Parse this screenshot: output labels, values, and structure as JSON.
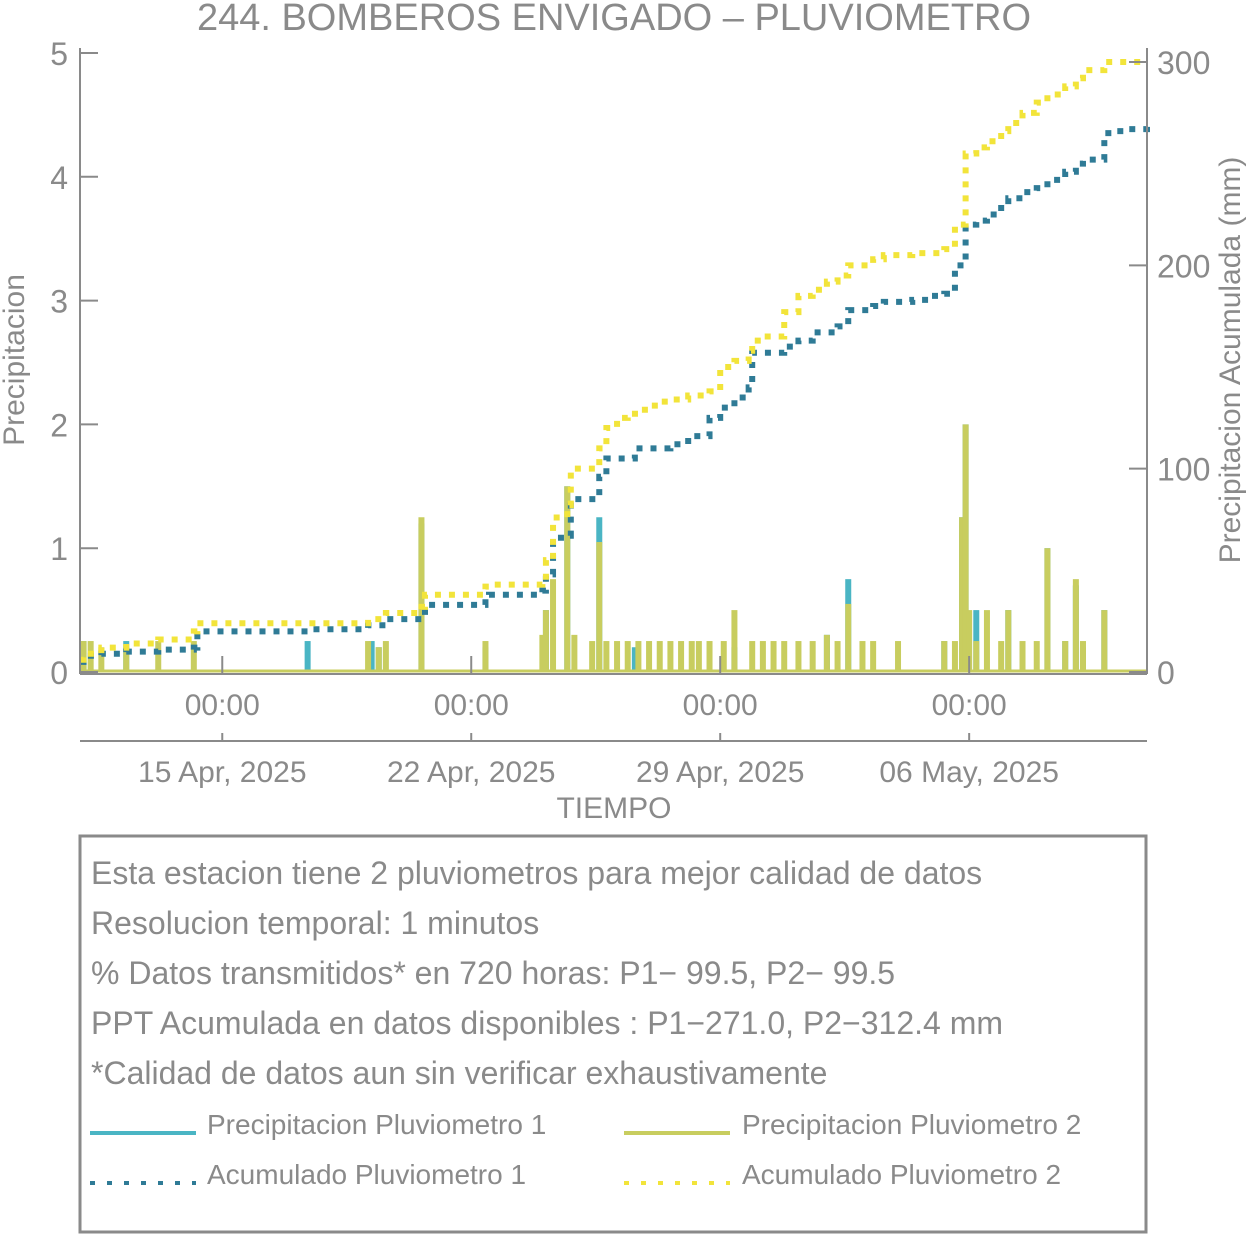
{
  "chart_data": {
    "type": "bar",
    "title": "244. BOMBEROS ENVIGADO – PLUVIOMETRO",
    "xlabel": "TIEMPO",
    "ylabel_left": "Precipitacion",
    "ylabel_right": "Precipitacion Acumulada (mm)",
    "ylim_left": [
      0,
      5
    ],
    "ylim_right": [
      0,
      300
    ],
    "yticks_left": [
      "0",
      "1",
      "2",
      "3",
      "4",
      "5"
    ],
    "yticks_right": [
      "0",
      "100",
      "200",
      "300"
    ],
    "xlim_days": [
      0,
      30
    ],
    "time_ticks": [
      {
        "day": 4,
        "label": "00:00"
      },
      {
        "day": 11,
        "label": "00:00"
      },
      {
        "day": 18,
        "label": "00:00"
      },
      {
        "day": 25,
        "label": "00:00"
      }
    ],
    "date_ticks": [
      {
        "day": 4,
        "label": "15 Apr, 2025"
      },
      {
        "day": 11,
        "label": "22 Apr, 2025"
      },
      {
        "day": 18,
        "label": "29 Apr, 2025"
      },
      {
        "day": 25,
        "label": "06 May, 2025"
      }
    ],
    "series": [
      {
        "name": "Precipitacion Pluviometro 1",
        "kind": "bar",
        "color": "#4ab5c4",
        "points": [
          [
            0.1,
            0.25
          ],
          [
            1.3,
            0.25
          ],
          [
            6.4,
            0.25
          ],
          [
            8.2,
            0.25
          ],
          [
            8.4,
            0.2
          ],
          [
            9.6,
            1.2
          ],
          [
            11.4,
            0.2
          ],
          [
            13.1,
            0.5
          ],
          [
            13.7,
            1.5
          ],
          [
            14.6,
            1.25
          ],
          [
            15.6,
            0.2
          ],
          [
            18.4,
            0.2
          ],
          [
            21.0,
            0.3
          ],
          [
            21.6,
            0.75
          ],
          [
            24.8,
            1.25
          ],
          [
            24.9,
            2.0
          ],
          [
            24.3,
            0.25
          ],
          [
            25.2,
            0.5
          ],
          [
            26.1,
            0.5
          ],
          [
            27.2,
            1.0
          ],
          [
            27.7,
            0.25
          ],
          [
            28.0,
            0.7
          ],
          [
            28.2,
            0.2
          ],
          [
            28.8,
            0.5
          ]
        ]
      },
      {
        "name": "Precipitacion Pluviometro 2",
        "kind": "bar",
        "color": "#c8cd5f",
        "points": [
          [
            0.1,
            0.25
          ],
          [
            0.3,
            0.25
          ],
          [
            0.6,
            0.2
          ],
          [
            1.3,
            0.2
          ],
          [
            2.2,
            0.25
          ],
          [
            3.2,
            0.25
          ],
          [
            8.1,
            0.25
          ],
          [
            8.4,
            0.2
          ],
          [
            8.6,
            0.25
          ],
          [
            9.6,
            1.25
          ],
          [
            11.4,
            0.25
          ],
          [
            13.0,
            0.3
          ],
          [
            13.1,
            0.5
          ],
          [
            13.3,
            0.75
          ],
          [
            13.7,
            1.5
          ],
          [
            13.9,
            0.3
          ],
          [
            14.4,
            0.25
          ],
          [
            14.6,
            1.05
          ],
          [
            14.8,
            0.25
          ],
          [
            15.1,
            0.25
          ],
          [
            15.4,
            0.25
          ],
          [
            15.7,
            0.25
          ],
          [
            16.0,
            0.25
          ],
          [
            16.3,
            0.25
          ],
          [
            16.6,
            0.25
          ],
          [
            16.9,
            0.25
          ],
          [
            17.2,
            0.25
          ],
          [
            17.4,
            0.25
          ],
          [
            17.7,
            0.25
          ],
          [
            18.1,
            0.25
          ],
          [
            18.4,
            0.5
          ],
          [
            18.9,
            0.25
          ],
          [
            19.2,
            0.25
          ],
          [
            19.5,
            0.25
          ],
          [
            19.8,
            0.25
          ],
          [
            20.2,
            0.25
          ],
          [
            20.6,
            0.25
          ],
          [
            21.0,
            0.3
          ],
          [
            21.3,
            0.25
          ],
          [
            21.6,
            0.55
          ],
          [
            22.0,
            0.25
          ],
          [
            22.3,
            0.25
          ],
          [
            23.0,
            0.25
          ],
          [
            24.3,
            0.25
          ],
          [
            24.6,
            0.25
          ],
          [
            24.8,
            1.25
          ],
          [
            24.9,
            2.0
          ],
          [
            25.0,
            0.5
          ],
          [
            25.2,
            0.25
          ],
          [
            25.5,
            0.5
          ],
          [
            25.9,
            0.25
          ],
          [
            26.1,
            0.5
          ],
          [
            26.5,
            0.25
          ],
          [
            26.9,
            0.25
          ],
          [
            27.2,
            1.0
          ],
          [
            27.7,
            0.25
          ],
          [
            28.0,
            0.75
          ],
          [
            28.2,
            0.25
          ],
          [
            28.8,
            0.5
          ]
        ]
      },
      {
        "name": "Acumulado Pluviometro 1",
        "kind": "step",
        "color": "#2f7b96",
        "points": [
          [
            0,
            5
          ],
          [
            0.1,
            8
          ],
          [
            0.6,
            9
          ],
          [
            1.3,
            10
          ],
          [
            2.2,
            11
          ],
          [
            3.2,
            12
          ],
          [
            3.3,
            20
          ],
          [
            6.4,
            21
          ],
          [
            8.1,
            23
          ],
          [
            8.6,
            26
          ],
          [
            9.6,
            28
          ],
          [
            9.7,
            33
          ],
          [
            11.4,
            37
          ],
          [
            11.5,
            38
          ],
          [
            13.0,
            40
          ],
          [
            13.1,
            48
          ],
          [
            13.3,
            66
          ],
          [
            13.7,
            67
          ],
          [
            13.8,
            85
          ],
          [
            14.6,
            96
          ],
          [
            14.8,
            105
          ],
          [
            15.6,
            110
          ],
          [
            16.6,
            112
          ],
          [
            17.1,
            116
          ],
          [
            17.7,
            125
          ],
          [
            18.0,
            130
          ],
          [
            18.4,
            135
          ],
          [
            18.8,
            140
          ],
          [
            18.9,
            157
          ],
          [
            19.8,
            160
          ],
          [
            20.2,
            163
          ],
          [
            20.6,
            167
          ],
          [
            21.3,
            170
          ],
          [
            21.6,
            178
          ],
          [
            22.3,
            180
          ],
          [
            22.6,
            182
          ],
          [
            23.4,
            183
          ],
          [
            23.9,
            185
          ],
          [
            24.3,
            186
          ],
          [
            24.6,
            200
          ],
          [
            24.9,
            220
          ],
          [
            25.2,
            222
          ],
          [
            25.5,
            225
          ],
          [
            25.9,
            230
          ],
          [
            26.1,
            233
          ],
          [
            26.5,
            236
          ],
          [
            26.9,
            238
          ],
          [
            27.2,
            242
          ],
          [
            27.7,
            246
          ],
          [
            28.0,
            250
          ],
          [
            28.2,
            252
          ],
          [
            28.8,
            265
          ],
          [
            29.0,
            266
          ],
          [
            29.5,
            267
          ],
          [
            30,
            272
          ]
        ]
      },
      {
        "name": "Acumulado Pluviometro 2",
        "kind": "step",
        "color": "#f2e43a",
        "points": [
          [
            0,
            6
          ],
          [
            0.1,
            9
          ],
          [
            0.6,
            12
          ],
          [
            1.3,
            14
          ],
          [
            2.2,
            16
          ],
          [
            3.2,
            20
          ],
          [
            3.3,
            24
          ],
          [
            8.1,
            26
          ],
          [
            8.6,
            29
          ],
          [
            9.6,
            32
          ],
          [
            9.7,
            38
          ],
          [
            11.4,
            42
          ],
          [
            11.5,
            43
          ],
          [
            13.0,
            45
          ],
          [
            13.1,
            55
          ],
          [
            13.3,
            76
          ],
          [
            13.7,
            82
          ],
          [
            13.8,
            100
          ],
          [
            14.6,
            110
          ],
          [
            14.8,
            120
          ],
          [
            15.1,
            125
          ],
          [
            15.4,
            127
          ],
          [
            15.7,
            129
          ],
          [
            16.0,
            131
          ],
          [
            16.3,
            133
          ],
          [
            16.6,
            134
          ],
          [
            17.1,
            136
          ],
          [
            17.7,
            138
          ],
          [
            18.0,
            150
          ],
          [
            18.4,
            153
          ],
          [
            18.8,
            158
          ],
          [
            18.9,
            163
          ],
          [
            19.2,
            165
          ],
          [
            19.8,
            177
          ],
          [
            20.2,
            185
          ],
          [
            20.6,
            188
          ],
          [
            21.0,
            192
          ],
          [
            21.3,
            195
          ],
          [
            21.6,
            200
          ],
          [
            22.3,
            203
          ],
          [
            22.6,
            205
          ],
          [
            23.4,
            206
          ],
          [
            24.3,
            208
          ],
          [
            24.6,
            220
          ],
          [
            24.9,
            255
          ],
          [
            25.2,
            258
          ],
          [
            25.5,
            261
          ],
          [
            25.9,
            266
          ],
          [
            26.1,
            270
          ],
          [
            26.5,
            275
          ],
          [
            26.9,
            280
          ],
          [
            27.2,
            284
          ],
          [
            27.7,
            288
          ],
          [
            28.0,
            292
          ],
          [
            28.2,
            296
          ],
          [
            28.8,
            300
          ]
        ]
      }
    ],
    "legend_placement": "bottom"
  },
  "notes_box": {
    "lines": [
      "Esta estacion tiene 2 pluviometros para mejor calidad de datos",
      "Resolucion temporal: 1 minutos",
      "% Datos transmitidos* en 720 horas: P1− 99.5, P2− 99.5",
      "PPT Acumulada en datos disponibles : P1−271.0, P2−312.4 mm",
      "*Calidad de datos aun sin verificar exhaustivamente"
    ]
  },
  "colors": {
    "axis": "#8a8a8a",
    "text": "#8a8a8a"
  }
}
